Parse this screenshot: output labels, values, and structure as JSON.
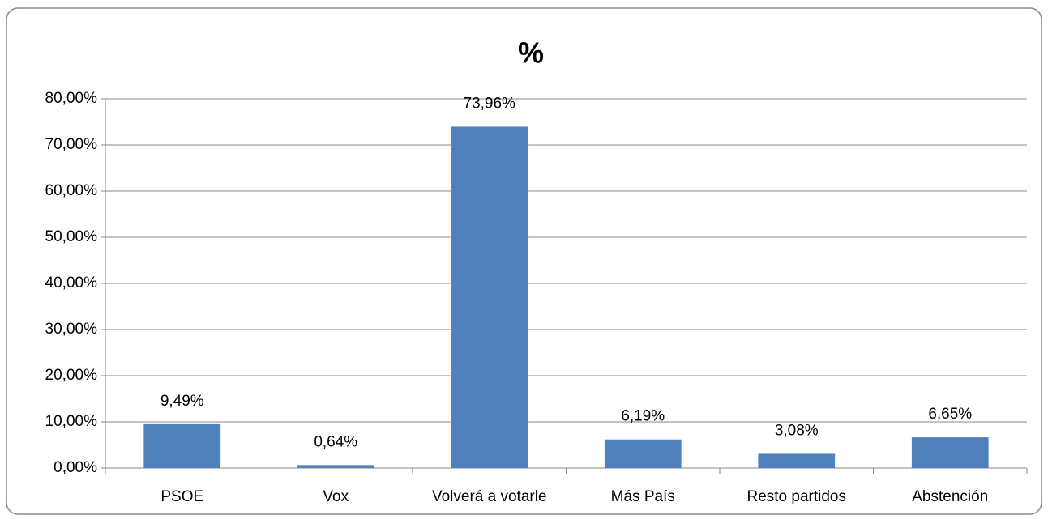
{
  "chart_data": {
    "type": "bar",
    "title": "%",
    "categories": [
      "PSOE",
      "Vox",
      "Volverá a votarle",
      "Más País",
      "Resto partidos",
      "Abstención"
    ],
    "values": [
      9.49,
      0.64,
      73.96,
      6.19,
      3.08,
      6.65
    ],
    "value_labels": [
      "9,49%",
      "0,64%",
      "73,96%",
      "6,19%",
      "3,08%",
      "6,65%"
    ],
    "color": "#4f81bd",
    "ylim": [
      0,
      80
    ],
    "yticks": [
      {
        "value": 0,
        "label": "0,00%"
      },
      {
        "value": 10,
        "label": "10,00%"
      },
      {
        "value": 20,
        "label": "20,00%"
      },
      {
        "value": 30,
        "label": "30,00%"
      },
      {
        "value": 40,
        "label": "40,00%"
      },
      {
        "value": 50,
        "label": "50,00%"
      },
      {
        "value": 60,
        "label": "60,00%"
      },
      {
        "value": 70,
        "label": "70,00%"
      },
      {
        "value": 80,
        "label": "80,00%"
      }
    ],
    "grid": true
  }
}
